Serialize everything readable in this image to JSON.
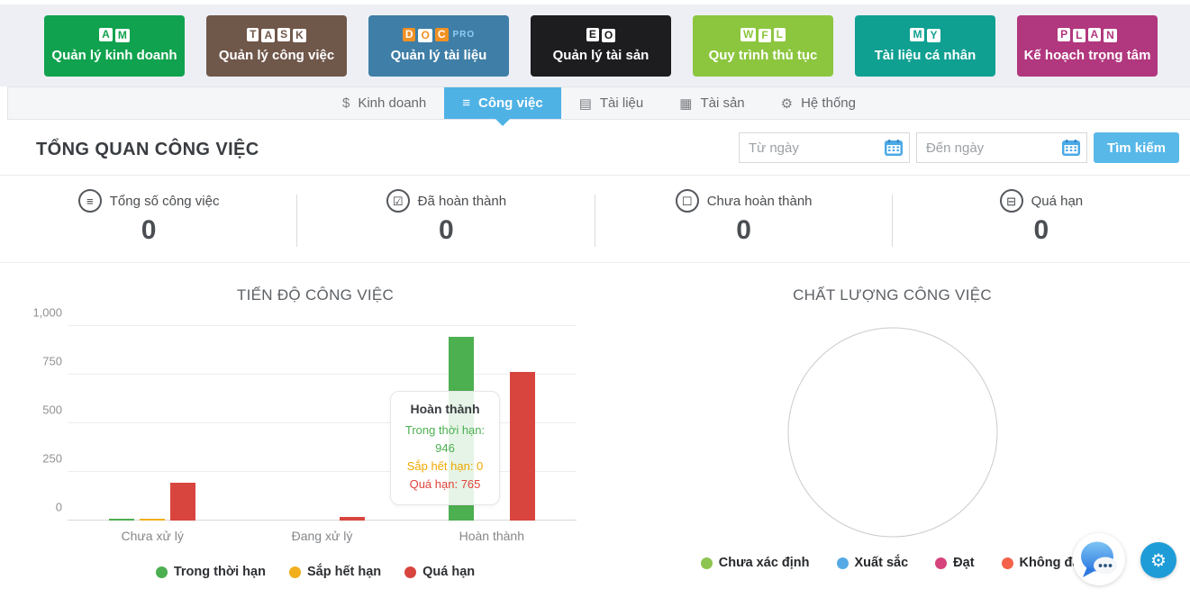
{
  "app_tiles": [
    {
      "logo": "AM",
      "label": "Quản lý kinh doanh",
      "color": "#10a24e"
    },
    {
      "logo": "TASK",
      "label": "Quản lý công việc",
      "color": "#6f574a"
    },
    {
      "logo": "DOC",
      "logo_suffix": "PRO",
      "label": "Quản lý tài liệu",
      "color": "#3f7ea6",
      "letter_box_colors": [
        "#f29124",
        "#ffffff",
        "#f29124"
      ],
      "letter_text_colors": [
        "#ffffff",
        "#f29124",
        "#ffffff"
      ]
    },
    {
      "logo": "EO",
      "label": "Quản lý tài sản",
      "color": "#1d1d1f"
    },
    {
      "logo": "WFL",
      "label": "Quy trình thủ tục",
      "color": "#8cc63e"
    },
    {
      "logo": "MY",
      "label": "Tài liệu cá nhân",
      "color": "#10a092"
    },
    {
      "logo": "PLAN",
      "label": "Kế hoạch trọng tâm",
      "color": "#b1377e"
    }
  ],
  "nav": {
    "tabs": [
      {
        "label": "Kinh doanh",
        "icon": "dollar-icon",
        "active": false
      },
      {
        "label": "Công việc",
        "icon": "list-icon",
        "active": true
      },
      {
        "label": "Tài liệu",
        "icon": "document-icon",
        "active": false
      },
      {
        "label": "Tài sản",
        "icon": "building-icon",
        "active": false
      },
      {
        "label": "Hệ thống",
        "icon": "gear-icon",
        "active": false
      }
    ],
    "active_color": "#4fb2e5"
  },
  "page": {
    "title": "TỔNG QUAN CÔNG VIỆC"
  },
  "filters": {
    "from_placeholder": "Từ ngày",
    "to_placeholder": "Đến ngày",
    "search_label": "Tìm kiếm",
    "button_color": "#58b8e8",
    "calendar_icon_color": "#4aa9e6"
  },
  "stats": [
    {
      "icon": "list-circle-icon",
      "label": "Tổng số công việc",
      "value": "0"
    },
    {
      "icon": "checked-box-icon",
      "label": "Đã hoàn thành",
      "value": "0"
    },
    {
      "icon": "empty-box-icon",
      "label": "Chưa hoàn thành",
      "value": "0"
    },
    {
      "icon": "minus-box-icon",
      "label": "Quá hạn",
      "value": "0"
    }
  ],
  "chart_data": [
    {
      "type": "bar",
      "title": "TIẾN ĐỘ CÔNG VIỆC",
      "categories": [
        "Chưa xử lý",
        "Đang xử lý",
        "Hoàn thành"
      ],
      "series": [
        {
          "name": "Trong thời hạn",
          "color": "#4caf50",
          "values": [
            10,
            0,
            946
          ]
        },
        {
          "name": "Sắp hết hạn",
          "color": "#f1af1c",
          "values": [
            8,
            0,
            0
          ]
        },
        {
          "name": "Quá hạn",
          "color": "#d8453e",
          "values": [
            195,
            20,
            765
          ]
        }
      ],
      "ylim": [
        0,
        1000
      ],
      "yticks": [
        "0",
        "250",
        "500",
        "750",
        "1,000"
      ],
      "grid": true,
      "legend_position": "bottom",
      "tooltip": {
        "title": "Hoàn thành",
        "lines": [
          {
            "text": "Trong thời hạn: 946",
            "color": "#4caf50"
          },
          {
            "text": "Sắp hết hạn: 0",
            "color": "#f0a800"
          },
          {
            "text": "Quá hạn: 765",
            "color": "#e0433b"
          }
        ]
      }
    },
    {
      "type": "pie",
      "title": "CHẤT LƯỢNG CÔNG VIỆC",
      "empty": true,
      "legend": [
        {
          "label": "Chưa xác định",
          "color": "#8dc551"
        },
        {
          "label": "Xuất sắc",
          "color": "#55aae5"
        },
        {
          "label": "Đạt",
          "color": "#d6437c"
        },
        {
          "label": "Không đạt",
          "color": "#f4624a"
        }
      ]
    }
  ],
  "floating": {
    "chat_icon": "chat-bubble-icon",
    "settings_icon": "gear-icon",
    "settings_color": "#1e9cd7"
  }
}
